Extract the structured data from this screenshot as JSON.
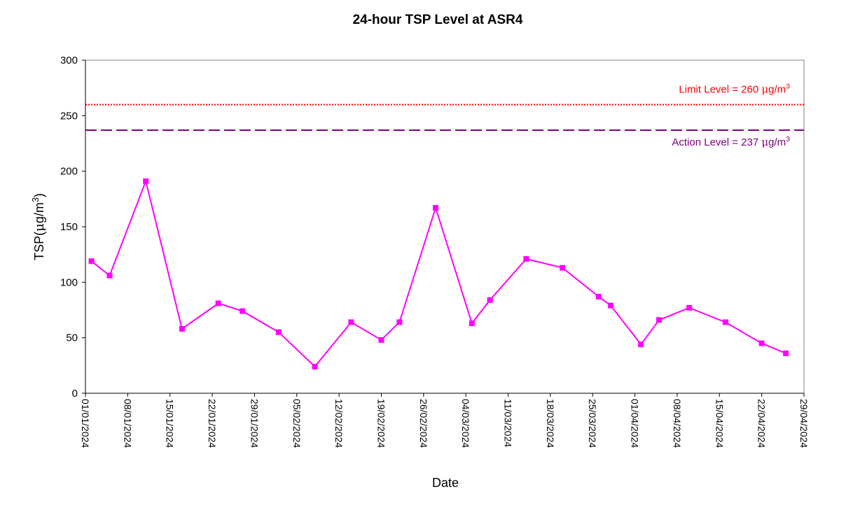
{
  "chart_data": {
    "type": "line",
    "title": "24-hour TSP Level at ASR4",
    "xlabel": "Date",
    "ylabel": "TSP(μg/m³)",
    "ylabel_parts": [
      "TSP(",
      "μ",
      "g/m",
      "3",
      ")"
    ],
    "ylim": [
      0,
      300
    ],
    "yticks": [
      0,
      50,
      100,
      150,
      200,
      250,
      300
    ],
    "xlim": [
      "2024-01-01",
      "2024-04-29"
    ],
    "xticks": [
      "2024-01-01",
      "2024-01-08",
      "2024-01-15",
      "2024-01-22",
      "2024-01-29",
      "2024-02-05",
      "2024-02-12",
      "2024-02-19",
      "2024-02-26",
      "2024-03-04",
      "2024-03-11",
      "2024-03-18",
      "2024-03-25",
      "2024-04-01",
      "2024-04-08",
      "2024-04-15",
      "2024-04-22",
      "2024-04-29"
    ],
    "xtick_labels": [
      "01/01/2024",
      "08/01/2024",
      "15/01/2024",
      "22/01/2024",
      "29/01/2024",
      "05/02/2024",
      "12/02/2024",
      "19/02/2024",
      "26/02/2024",
      "04/03/2024",
      "11/03/2024",
      "18/03/2024",
      "25/03/2024",
      "01/04/2024",
      "08/04/2024",
      "15/04/2024",
      "22/04/2024",
      "29/04/2024"
    ],
    "grid": false,
    "series": [
      {
        "color": "#ff00ff",
        "marker": "square",
        "x": [
          "2024-01-02",
          "2024-01-05",
          "2024-01-11",
          "2024-01-17",
          "2024-01-23",
          "2024-01-27",
          "2024-02-02",
          "2024-02-08",
          "2024-02-14",
          "2024-02-19",
          "2024-02-22",
          "2024-02-28",
          "2024-03-05",
          "2024-03-08",
          "2024-03-14",
          "2024-03-20",
          "2024-03-26",
          "2024-03-28",
          "2024-04-02",
          "2024-04-05",
          "2024-04-10",
          "2024-04-16",
          "2024-04-22",
          "2024-04-26"
        ],
        "y": [
          119,
          106,
          191,
          58,
          81,
          74,
          55,
          24,
          64,
          48,
          64,
          167,
          63,
          84,
          121,
          113,
          87,
          79,
          44,
          66,
          77,
          64,
          45,
          36
        ]
      }
    ],
    "reference_lines": [
      {
        "value": 260,
        "label": "Limit Level = 260 μg/m³",
        "label_parts": [
          "Limit Level = 260 ",
          "μ",
          "g/m",
          "3"
        ],
        "color": "#ff0000",
        "style": "dotted"
      },
      {
        "value": 237,
        "label": "Action Level = 237 μg/m³",
        "label_parts": [
          "Action Level = 237 ",
          "μ",
          "g/m",
          "3"
        ],
        "color": "#800080",
        "style": "dashed"
      }
    ]
  }
}
